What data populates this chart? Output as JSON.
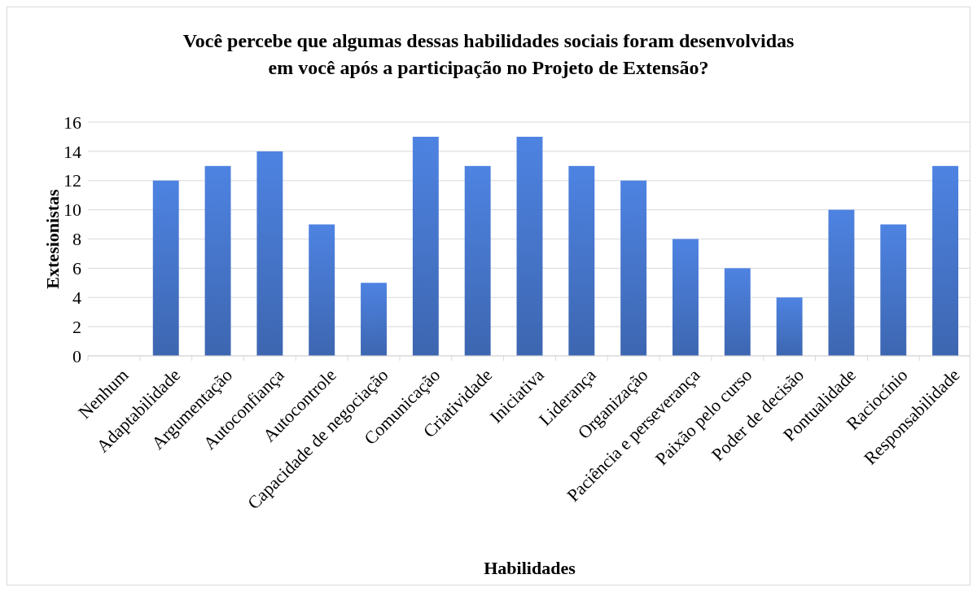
{
  "chart_data": {
    "type": "bar",
    "title": "Você percebe que algumas dessas habilidades sociais foram desenvolvidas\nem você após a participação no Projeto de Extensão?",
    "xlabel": "Habilidades",
    "ylabel": "Extesionistas",
    "categories": [
      "Nenhum",
      "Adaptabilidade",
      "Argumentação",
      "Autoconfiança",
      "Autocontrole",
      "Capacidade de negociação",
      "Comunicação",
      "Criatividade",
      "Iniciativa",
      "Liderança",
      "Organização",
      "Paciência e perseverança",
      "Paixão pelo curso",
      "Poder de decisão",
      "Pontualidade",
      "Raciocínio",
      "Responsabilidade"
    ],
    "values": [
      0,
      12,
      13,
      14,
      9,
      5,
      15,
      13,
      15,
      13,
      12,
      8,
      6,
      4,
      10,
      9,
      13
    ],
    "color": "#4472c4",
    "ylim": [
      0,
      16
    ],
    "yticks": [
      0,
      2,
      4,
      6,
      8,
      10,
      12,
      14,
      16
    ],
    "grid": "y"
  }
}
